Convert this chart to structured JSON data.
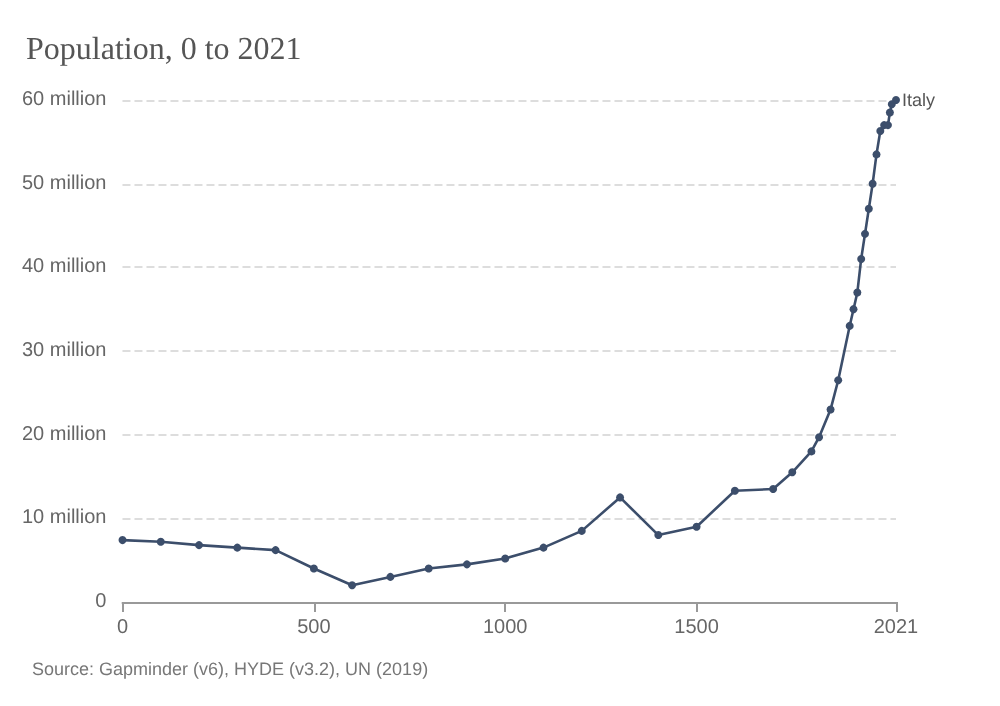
{
  "chart_data": {
    "type": "line",
    "title": "Population, 0 to 2021",
    "series": [
      {
        "name": "Italy",
        "color": "#3c4e6b",
        "x": [
          0,
          100,
          200,
          300,
          400,
          500,
          600,
          700,
          800,
          900,
          1000,
          1100,
          1200,
          1300,
          1400,
          1500,
          1600,
          1700,
          1750,
          1800,
          1820,
          1850,
          1870,
          1900,
          1910,
          1920,
          1930,
          1940,
          1950,
          1960,
          1970,
          1980,
          1990,
          2000,
          2005,
          2010,
          2021
        ],
        "values": [
          7.4,
          7.2,
          6.8,
          6.5,
          6.2,
          4.0,
          2.0,
          3.0,
          4.0,
          4.5,
          5.2,
          6.5,
          8.5,
          12.5,
          8.0,
          9.0,
          13.3,
          13.5,
          15.5,
          18,
          19.7,
          23,
          26.5,
          33,
          35,
          37,
          41,
          44,
          47,
          50,
          53.5,
          56.3,
          57,
          57,
          58.5,
          59.5,
          60
        ]
      }
    ],
    "xlim": [
      0,
      2021
    ],
    "xticks": [
      0,
      500,
      1000,
      1500,
      2021
    ],
    "ylim": [
      0,
      60
    ],
    "yticks": [
      0,
      {
        "value": 10,
        "label": "10 million"
      },
      {
        "value": 20,
        "label": "20 million"
      },
      {
        "value": 30,
        "label": "30 million"
      },
      {
        "value": 40,
        "label": "40 million"
      },
      {
        "value": 50,
        "label": "50 million"
      },
      {
        "value": 60,
        "label": "60 million"
      }
    ],
    "grid": "y",
    "marker": "circle",
    "line_style": "solid",
    "annotations": [
      "Source: Gapminder (v6), HYDE (v3.2), UN (2019)"
    ]
  }
}
